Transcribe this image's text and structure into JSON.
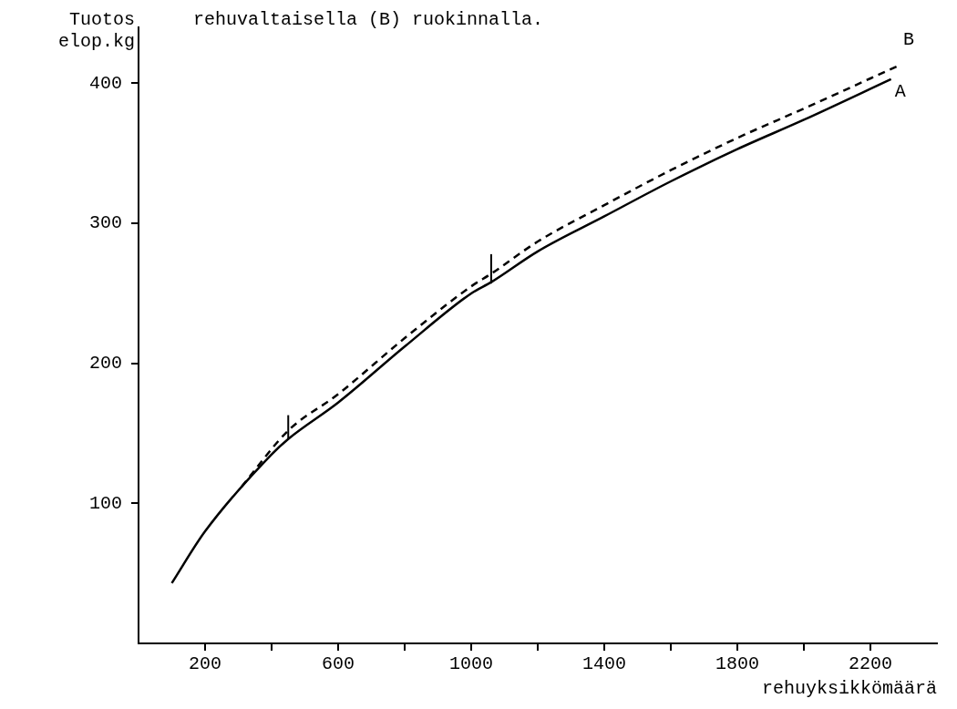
{
  "chart_data": {
    "type": "line",
    "title": "rehuvaltaisella (B) ruokinnalla.",
    "ylabel": "Tuotos elop.kg",
    "xlabel": "rehuyksikkömäärä",
    "xlim": [
      0,
      2400
    ],
    "ylim": [
      0,
      440
    ],
    "xticks": [
      200,
      {
        "value": 400,
        "label": null
      },
      600,
      {
        "value": 800,
        "label": null
      },
      1000,
      {
        "value": 1200,
        "label": null
      },
      1400,
      {
        "value": 1600,
        "label": null
      },
      1800,
      {
        "value": 2000,
        "label": null
      },
      2200
    ],
    "yticks": [
      100,
      200,
      300,
      400
    ],
    "grid": false,
    "legend": false,
    "marker": "none",
    "series": [
      {
        "name": "A",
        "color": "#000000",
        "line_style": "solid",
        "x": [
          100,
          200,
          400,
          450,
          600,
          800,
          1000,
          1060,
          1200,
          1400,
          1600,
          1800,
          2000,
          2262
        ],
        "values": [
          43,
          80,
          135,
          146,
          172,
          212,
          250,
          258,
          280,
          305,
          330,
          353,
          374,
          403
        ]
      },
      {
        "name": "B",
        "color": "#000000",
        "line_style": "dashed",
        "x": [
          310,
          450,
          600,
          800,
          1000,
          1060,
          1200,
          1400,
          1600,
          1800,
          2000,
          2288
        ],
        "values": [
          112,
          152,
          178,
          218,
          255,
          264,
          287,
          313,
          338,
          361,
          382,
          413
        ],
        "errors": [
          null,
          [
            146,
            163
          ],
          null,
          null,
          null,
          [
            257,
            278
          ],
          null,
          null,
          null,
          null,
          null,
          null
        ]
      }
    ]
  }
}
